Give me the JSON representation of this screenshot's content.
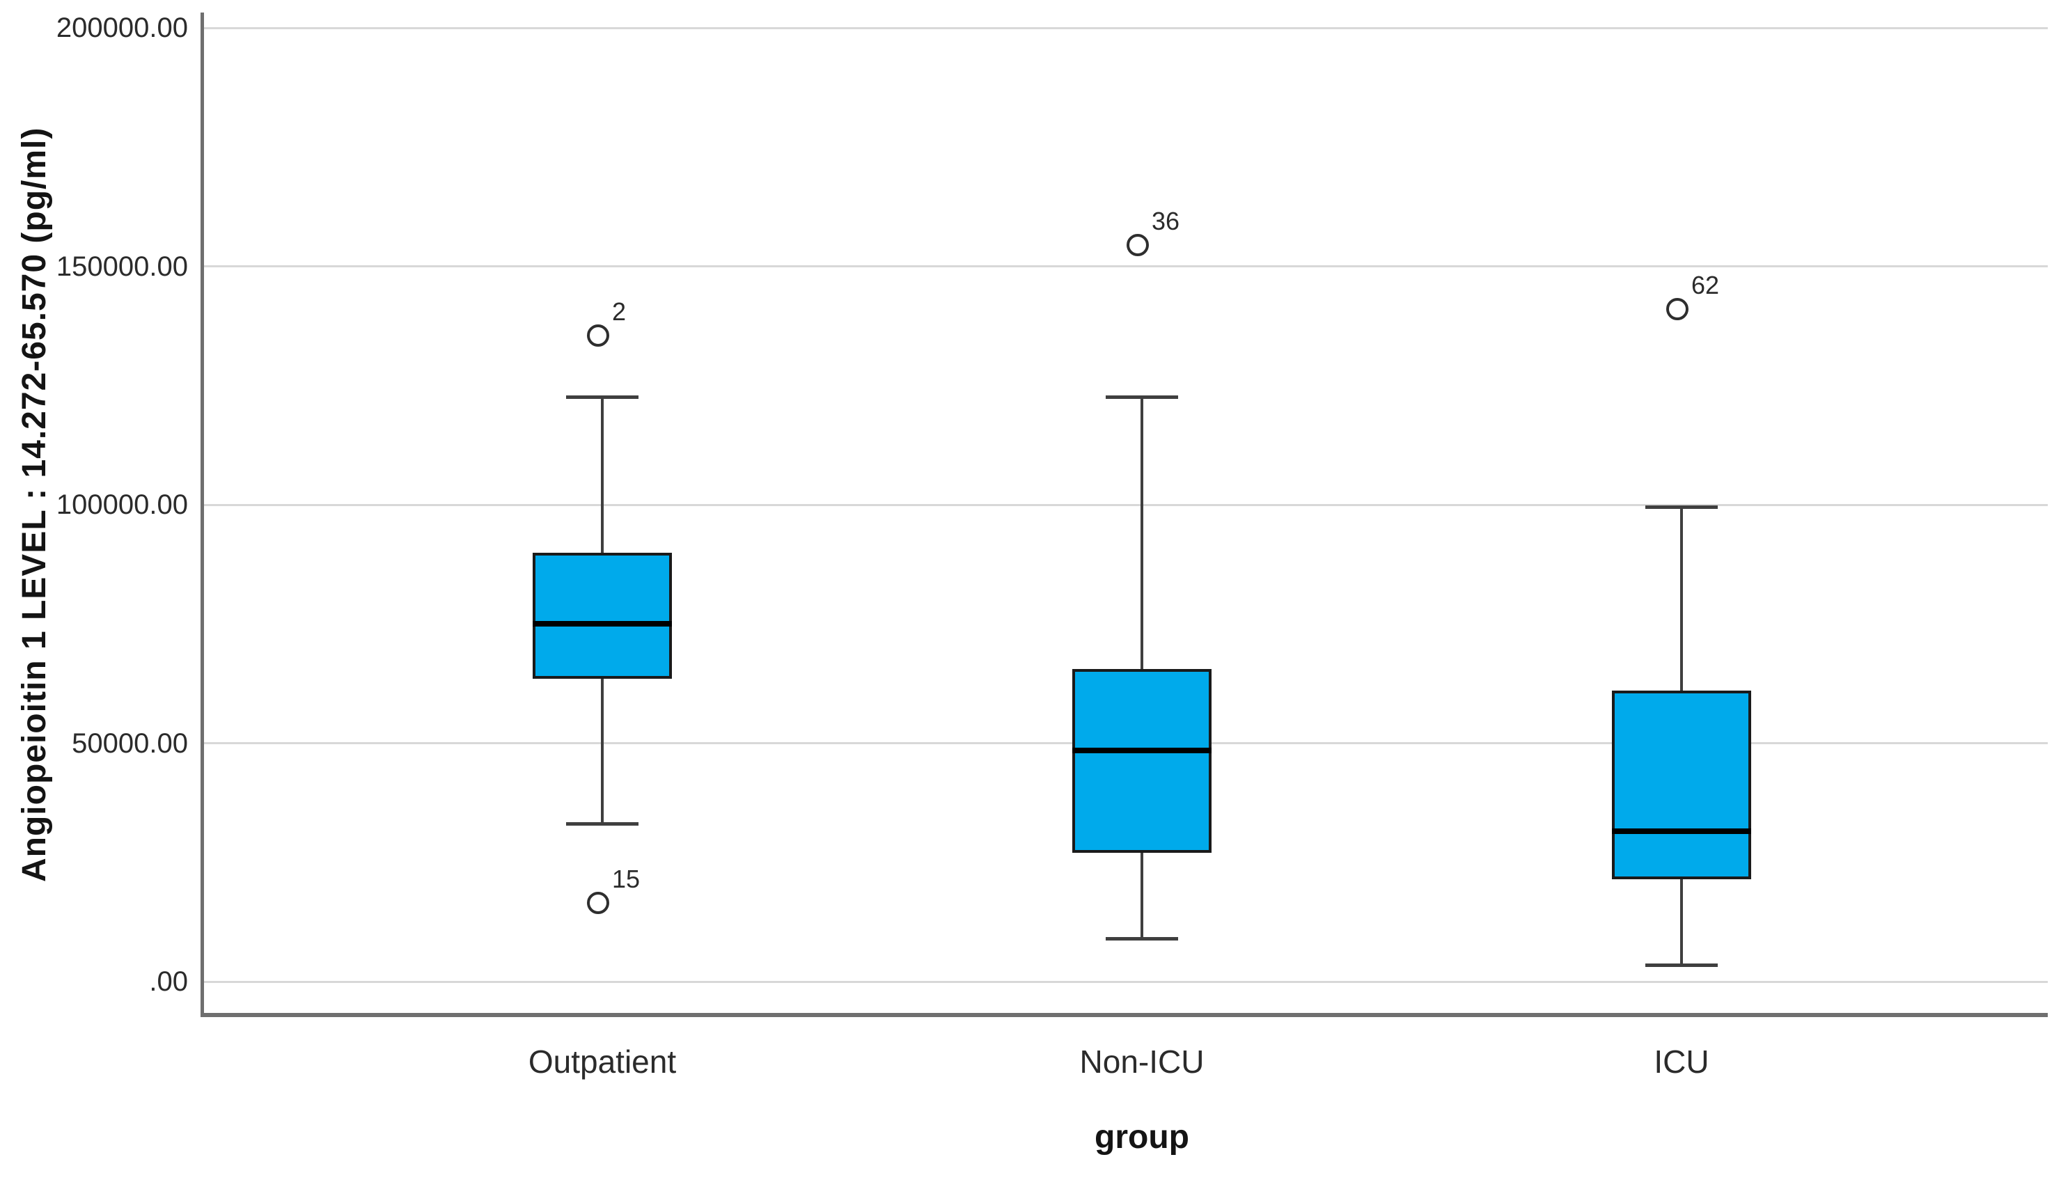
{
  "figure": {
    "background": "#ffffff"
  },
  "chart_data": {
    "type": "boxplot",
    "title": "",
    "xlabel": "group",
    "ylabel": "Angiopeioitin 1 LEVEL : 14.272-65.570 (pg/ml)",
    "ylim": [
      0,
      200000
    ],
    "grid": "horizontal",
    "legend": "none",
    "yticks": [
      {
        "value": 200000,
        "label": "200000.00"
      },
      {
        "value": 150000,
        "label": "150000.00"
      },
      {
        "value": 100000,
        "label": "100000.00"
      },
      {
        "value": 50000,
        "label": "50000.00"
      },
      {
        "value": 0,
        "label": ".00"
      }
    ],
    "categories": [
      "Outpatient",
      "Non-ICU",
      "ICU"
    ],
    "series": [
      {
        "category": "Outpatient",
        "whisker_low": 33000,
        "q1": 63500,
        "median": 75000,
        "q3": 90000,
        "whisker_high": 122500,
        "outliers": [
          {
            "label": "2",
            "value": 135500
          },
          {
            "label": "15",
            "value": 16500
          }
        ]
      },
      {
        "category": "Non-ICU",
        "whisker_low": 9000,
        "q1": 27000,
        "median": 48500,
        "q3": 65500,
        "whisker_high": 122500,
        "outliers": [
          {
            "label": "36",
            "value": 154500
          }
        ]
      },
      {
        "category": "ICU",
        "whisker_low": 3500,
        "q1": 21500,
        "median": 31500,
        "q3": 61000,
        "whisker_high": 99500,
        "outliers": [
          {
            "label": "62",
            "value": 141000
          }
        ]
      }
    ],
    "colors": {
      "box_fill": "#00AAEB",
      "box_border": "#1a1a1a",
      "median": "#000000",
      "whisker": "#3f3f3f",
      "gridline": "#d8d8d8",
      "axis": "#6f6f6f",
      "text": "#2b2b2b",
      "outlier_ring": "#2e2e2e"
    }
  }
}
